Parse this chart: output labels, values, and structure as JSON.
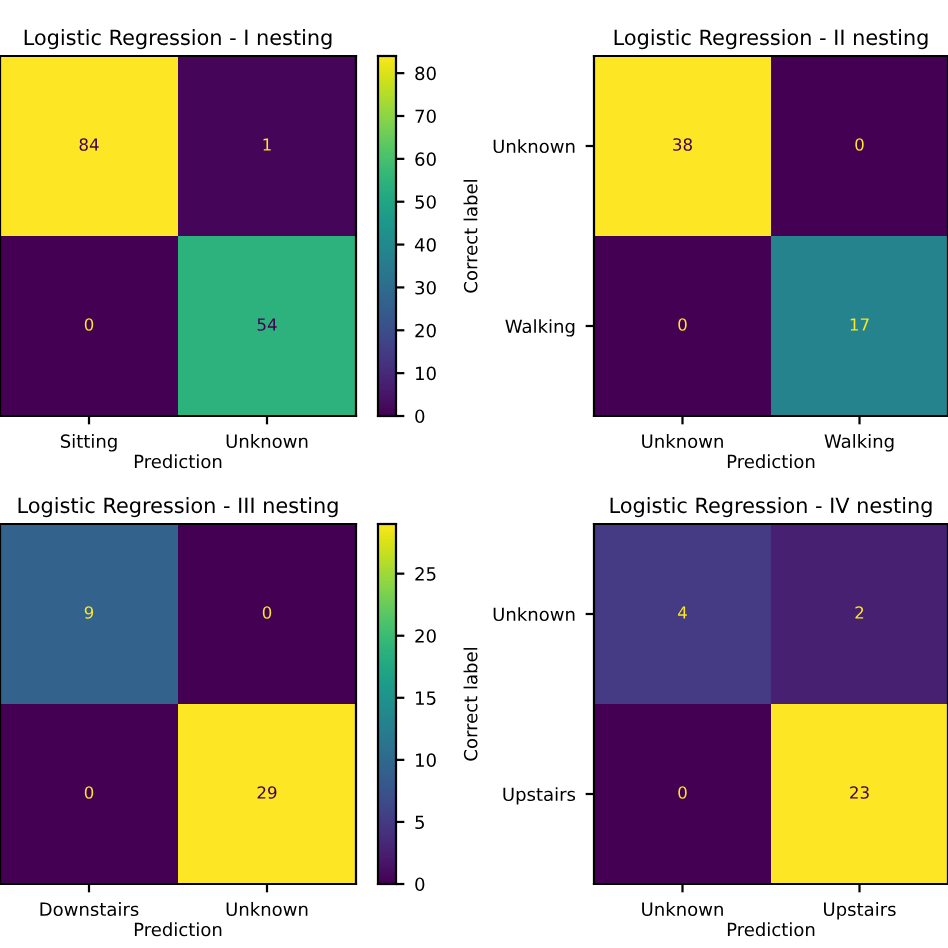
{
  "chart_data": [
    {
      "type": "heatmap",
      "title": "Logistic Regression - I nesting",
      "xlabel": "Prediction",
      "categories": [
        "Sitting",
        "Unknown"
      ],
      "y_categories": [
        null,
        null
      ],
      "cells": [
        [
          84,
          1
        ],
        [
          0,
          54
        ]
      ],
      "data_labels": true,
      "clim": [
        0,
        84
      ],
      "cticks": [
        0,
        10,
        20,
        30,
        40,
        50,
        60,
        70,
        80
      ],
      "tick_labels": "x"
    },
    {
      "type": "heatmap",
      "title": "Logistic Regression - II nesting",
      "xlabel": "Prediction",
      "ylabel": "Correct label",
      "categories": [
        "Unknown",
        "Walking"
      ],
      "y_categories": [
        "Unknown",
        "Walking"
      ],
      "cells": [
        [
          38,
          0
        ],
        [
          0,
          17
        ]
      ],
      "data_labels": true
    },
    {
      "type": "heatmap",
      "title": "Logistic Regression - III nesting",
      "xlabel": "Prediction",
      "categories": [
        "Downstairs",
        "Unknown"
      ],
      "y_categories": [
        null,
        null
      ],
      "cells": [
        [
          9,
          0
        ],
        [
          0,
          29
        ]
      ],
      "data_labels": true,
      "clim": [
        0,
        29
      ],
      "cticks": [
        0,
        5,
        10,
        15,
        20,
        25
      ],
      "tick_labels": "x"
    },
    {
      "type": "heatmap",
      "title": "Logistic Regression - IV nesting",
      "xlabel": "Prediction",
      "ylabel": "Correct label",
      "categories": [
        "Unknown",
        "Upstairs"
      ],
      "y_categories": [
        "Unknown",
        "Upstairs"
      ],
      "cells": [
        [
          4,
          2
        ],
        [
          0,
          23
        ]
      ],
      "data_labels": true
    }
  ]
}
